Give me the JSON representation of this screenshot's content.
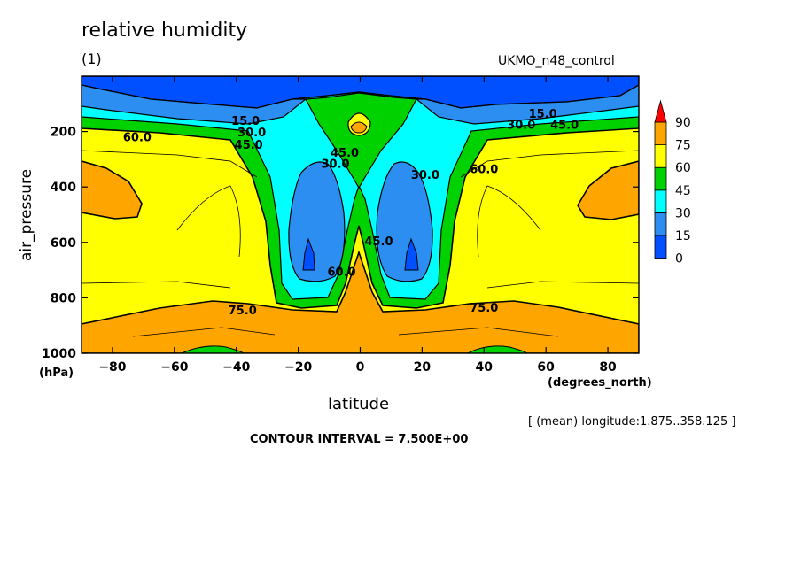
{
  "header": {
    "title": "relative humidity",
    "subtitle": "(1)",
    "dataset": "UKMO_n48_control"
  },
  "footer": {
    "mean_note": "[ (mean) longitude:1.875..358.125 ]",
    "contour_interval": "CONTOUR INTERVAL = 7.500E+00"
  },
  "chart_data": {
    "type": "contour",
    "title": "relative humidity",
    "xlabel": "latitude",
    "xunit": "(degrees_north)",
    "ylabel": "air_pressure",
    "yunit": "(hPa)",
    "xlim": [
      -90,
      90
    ],
    "ylim": [
      1000,
      0
    ],
    "xticks": [
      -80,
      -60,
      -40,
      -20,
      0,
      20,
      40,
      60,
      80
    ],
    "yticks": [
      200,
      400,
      600,
      800,
      1000
    ],
    "legend": {
      "placement": "right",
      "levels": [
        0,
        15,
        30,
        45,
        60,
        75,
        90
      ],
      "colors": [
        "#0050ff",
        "#2b8ef0",
        "#00ffff",
        "#00d200",
        "#ffff00",
        "#ffa500",
        "#ff0000"
      ]
    },
    "contour_labels": [
      {
        "text": "15.0",
        "lat": -37,
        "p": 175
      },
      {
        "text": "30.0",
        "lat": -35,
        "p": 218
      },
      {
        "text": "60.0",
        "lat": -72,
        "p": 235
      },
      {
        "text": "45.0",
        "lat": -36,
        "p": 262
      },
      {
        "text": "45.0",
        "lat": -5,
        "p": 290
      },
      {
        "text": "30.0",
        "lat": -8,
        "p": 330
      },
      {
        "text": "30.0",
        "lat": 21,
        "p": 370
      },
      {
        "text": "60.0",
        "lat": 40,
        "p": 350
      },
      {
        "text": "15.0",
        "lat": 59,
        "p": 150
      },
      {
        "text": "30.0",
        "lat": 52,
        "p": 190
      },
      {
        "text": "45.0",
        "lat": 66,
        "p": 190
      },
      {
        "text": "45.0",
        "lat": 6,
        "p": 610
      },
      {
        "text": "60.0",
        "lat": -6,
        "p": 720
      },
      {
        "text": "75.0",
        "lat": -38,
        "p": 860
      },
      {
        "text": "75.0",
        "lat": 40,
        "p": 850
      }
    ],
    "contour_interval": 7.5
  }
}
